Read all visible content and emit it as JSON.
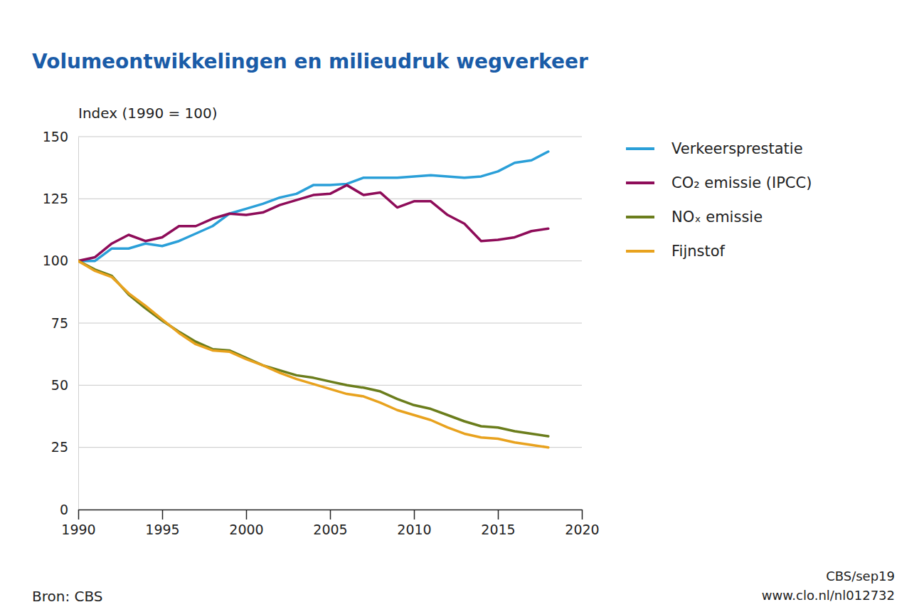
{
  "chart_data": {
    "type": "line",
    "title": "Volumeontwikkelingen en milieudruk wegverkeer",
    "y_label": "Index (1990 = 100)",
    "source": "Bron: CBS",
    "credits": [
      "CBS/sep19",
      "www.clo.nl/nl012732"
    ],
    "x": [
      1990,
      1991,
      1992,
      1993,
      1994,
      1995,
      1996,
      1997,
      1998,
      1999,
      2000,
      2001,
      2002,
      2003,
      2004,
      2005,
      2006,
      2007,
      2008,
      2009,
      2010,
      2011,
      2012,
      2013,
      2014,
      2015,
      2016,
      2017,
      2018
    ],
    "xlim": [
      1990,
      2020
    ],
    "xticks": [
      1990,
      1995,
      2000,
      2005,
      2010,
      2015,
      2020
    ],
    "ylim": [
      0,
      150
    ],
    "yticks": [
      0,
      25,
      50,
      75,
      100,
      125,
      150
    ],
    "grid": true,
    "legend": "right",
    "series": [
      {
        "name": "Verkeersprestatie",
        "color": "#2a9fd8",
        "values": [
          100,
          100,
          105,
          105,
          107,
          106,
          108,
          111,
          114,
          119,
          121,
          123,
          125.5,
          127,
          130.5,
          130.5,
          131,
          133.5,
          133.5,
          133.5,
          134,
          134.5,
          134,
          133.5,
          134,
          136,
          139.5,
          140.5,
          144
        ]
      },
      {
        "name": "CO₂ emissie (IPCC)",
        "color": "#8e0c59",
        "values": [
          100,
          101.5,
          107,
          110.5,
          108,
          109.5,
          114,
          114,
          117,
          119,
          118.5,
          119.5,
          122.5,
          124.5,
          126.5,
          127,
          130.5,
          126.5,
          127.5,
          121.5,
          124,
          124,
          118.5,
          115,
          108,
          108.5,
          109.5,
          112,
          113
        ]
      },
      {
        "name": "NOₓ emissie",
        "color": "#6b7d1c",
        "values": [
          100,
          96.5,
          94,
          86.5,
          81,
          76,
          71.5,
          67.5,
          64.5,
          64,
          61,
          58,
          56,
          54,
          53,
          51.5,
          50,
          49,
          47.5,
          44.5,
          42,
          40.5,
          38,
          35.5,
          33.5,
          33,
          31.5,
          30.5,
          29.5
        ]
      },
      {
        "name": "Fijnstof",
        "color": "#e8a21e",
        "values": [
          100,
          96,
          93.5,
          87,
          82,
          76.5,
          71,
          66.5,
          64,
          63.5,
          60.5,
          58,
          55,
          52.5,
          50.5,
          48.5,
          46.5,
          45.5,
          43,
          40,
          38,
          36,
          33,
          30.5,
          29,
          28.5,
          27,
          26,
          25
        ]
      }
    ]
  }
}
